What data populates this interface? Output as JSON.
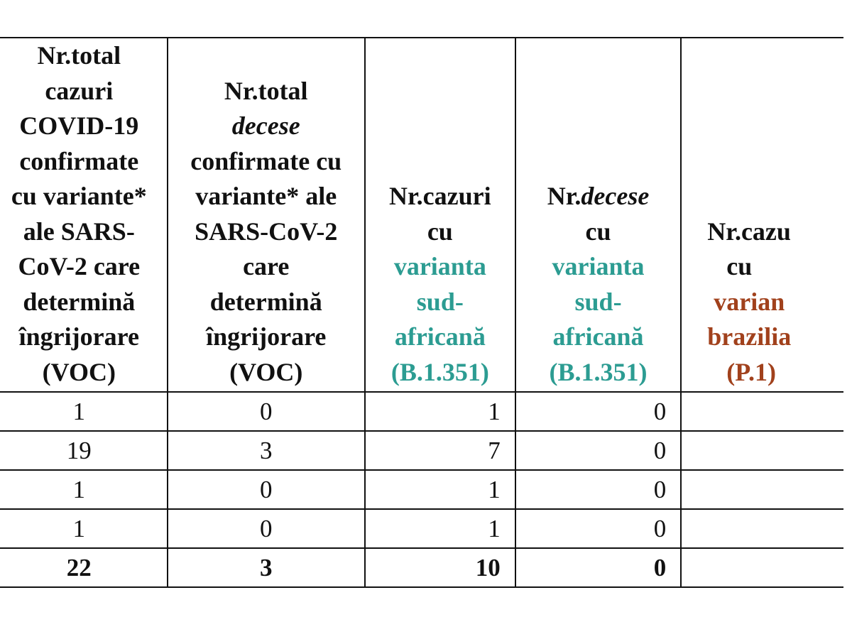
{
  "colors": {
    "teal": "#2c9c92",
    "brown": "#a1411c"
  },
  "headers": [
    {
      "lines": [
        [
          {
            "text": "Nr.total"
          }
        ],
        [
          {
            "text": "cazuri"
          }
        ],
        [
          {
            "text": "COVID-19"
          }
        ],
        [
          {
            "text": "confirmate"
          }
        ],
        [
          {
            "text": "cu variante*"
          }
        ],
        [
          {
            "text": "ale SARS-"
          }
        ],
        [
          {
            "text": "CoV-2 care"
          }
        ],
        [
          {
            "text": "determină"
          }
        ],
        [
          {
            "text": "îngrijorare"
          }
        ],
        [
          {
            "text": "(VOC)"
          }
        ]
      ]
    },
    {
      "lines": [
        [
          {
            "text": "Nr.total"
          }
        ],
        [
          {
            "text": "decese",
            "style": "it"
          }
        ],
        [
          {
            "text": "confirmate cu"
          }
        ],
        [
          {
            "text": "variante* ale"
          }
        ],
        [
          {
            "text": "SARS-CoV-2"
          }
        ],
        [
          {
            "text": "care"
          }
        ],
        [
          {
            "text": "determină"
          }
        ],
        [
          {
            "text": "îngrijorare"
          }
        ],
        [
          {
            "text": "(VOC)"
          }
        ]
      ]
    },
    {
      "lines": [
        [
          {
            "text": "Nr.cazuri"
          }
        ],
        [
          {
            "text": "cu"
          }
        ],
        [
          {
            "text": "varianta",
            "style": "teal"
          }
        ],
        [
          {
            "text": "sud-",
            "style": "teal"
          }
        ],
        [
          {
            "text": "africană",
            "style": "teal"
          }
        ],
        [
          {
            "text": "(B.1.351)",
            "style": "teal"
          }
        ]
      ]
    },
    {
      "lines": [
        [
          {
            "text": "Nr."
          },
          {
            "text": "decese",
            "style": "it"
          }
        ],
        [
          {
            "text": "cu"
          }
        ],
        [
          {
            "text": "varianta",
            "style": "teal"
          }
        ],
        [
          {
            "text": "sud-",
            "style": "teal"
          }
        ],
        [
          {
            "text": "africană",
            "style": "teal"
          }
        ],
        [
          {
            "text": "(B.1.351)",
            "style": "teal"
          }
        ]
      ]
    },
    {
      "lines": [
        [
          {
            "text": "Nr.cazu"
          }
        ],
        [
          {
            "text": "   cu"
          }
        ],
        [
          {
            "text": " varian",
            "style": "brown"
          }
        ],
        [
          {
            "text": "brazilia",
            "style": "brown"
          }
        ],
        [
          {
            "text": "   (P.1)",
            "style": "brown"
          }
        ]
      ]
    }
  ],
  "rows": [
    [
      "1",
      "0",
      "1",
      "0",
      ""
    ],
    [
      "19",
      "3",
      "7",
      "0",
      ""
    ],
    [
      "1",
      "0",
      "1",
      "0",
      ""
    ],
    [
      "1",
      "0",
      "1",
      "0",
      ""
    ]
  ],
  "total": [
    "22",
    "3",
    "10",
    "0",
    ""
  ]
}
